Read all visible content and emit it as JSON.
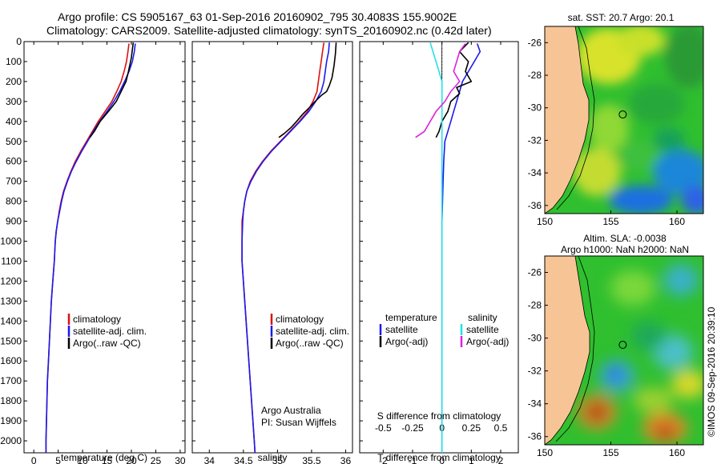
{
  "header": {
    "line1": "Argo profile: CS 5905167_63 01-Sep-2016 20160902_795 30.4083S 155.9002E",
    "line2": "Climatology: CARS2009. Satellite-adjusted climatology: synTS_20160902.nc (0.42d later)"
  },
  "watermark": "©IMOS 09-Sep-2016 20:39:10",
  "colors": {
    "climatology": "#dd1111",
    "satellite": "#1a1aee",
    "argo": "#000000",
    "sal_sat": "#22e0e8",
    "sal_argo": "#dd22dd",
    "land": "#f7c595"
  },
  "chart_data": [
    {
      "id": "temperature",
      "type": "line",
      "xlabel": "temperature (deg C)",
      "ylabel": "",
      "xlim": [
        -2,
        31
      ],
      "ylim": [
        2060,
        0
      ],
      "xticks": [
        0,
        5,
        10,
        15,
        20,
        25,
        30
      ],
      "yticks": [
        0,
        100,
        200,
        300,
        400,
        500,
        600,
        700,
        800,
        900,
        1000,
        1100,
        1200,
        1300,
        1400,
        1500,
        1600,
        1700,
        1800,
        1900,
        2000
      ],
      "legend": [
        "climatology",
        "satellite-adj. clim.",
        "Argo(..raw -QC)"
      ],
      "series": [
        {
          "name": "climatology",
          "color": "#dd1111",
          "points": [
            [
              19.5,
              10
            ],
            [
              19.3,
              50
            ],
            [
              19.0,
              100
            ],
            [
              18.5,
              150
            ],
            [
              17.9,
              200
            ],
            [
              17.0,
              250
            ],
            [
              16.0,
              300
            ],
            [
              14.6,
              350
            ],
            [
              13.2,
              400
            ],
            [
              12.0,
              450
            ],
            [
              10.8,
              500
            ],
            [
              9.6,
              550
            ],
            [
              8.5,
              600
            ],
            [
              7.6,
              650
            ],
            [
              6.8,
              700
            ],
            [
              6.1,
              750
            ],
            [
              5.6,
              800
            ],
            [
              5.2,
              850
            ],
            [
              4.9,
              900
            ],
            [
              4.6,
              950
            ],
            [
              4.4,
              1000
            ],
            [
              4.2,
              1100
            ],
            [
              3.9,
              1200
            ],
            [
              3.6,
              1300
            ],
            [
              3.4,
              1400
            ],
            [
              3.2,
              1500
            ],
            [
              3.0,
              1600
            ],
            [
              2.8,
              1700
            ],
            [
              2.7,
              1800
            ],
            [
              2.6,
              1900
            ],
            [
              2.5,
              2000
            ],
            [
              2.5,
              2060
            ]
          ]
        },
        {
          "name": "satellite-adj. clim.",
          "color": "#1a1aee",
          "points": [
            [
              20.8,
              10
            ],
            [
              20.6,
              50
            ],
            [
              20.2,
              100
            ],
            [
              19.5,
              150
            ],
            [
              18.6,
              200
            ],
            [
              17.6,
              250
            ],
            [
              16.4,
              300
            ],
            [
              15.0,
              350
            ],
            [
              13.5,
              400
            ],
            [
              12.2,
              450
            ],
            [
              11.0,
              500
            ],
            [
              9.8,
              550
            ],
            [
              8.7,
              600
            ],
            [
              7.7,
              650
            ],
            [
              6.9,
              700
            ],
            [
              6.2,
              750
            ],
            [
              5.7,
              800
            ],
            [
              5.3,
              850
            ],
            [
              4.9,
              900
            ],
            [
              4.6,
              950
            ],
            [
              4.4,
              1000
            ],
            [
              4.2,
              1100
            ],
            [
              3.9,
              1200
            ],
            [
              3.6,
              1300
            ],
            [
              3.4,
              1400
            ],
            [
              3.2,
              1500
            ],
            [
              3.0,
              1600
            ],
            [
              2.8,
              1700
            ],
            [
              2.7,
              1800
            ],
            [
              2.6,
              1900
            ],
            [
              2.5,
              2000
            ],
            [
              2.5,
              2060
            ]
          ]
        },
        {
          "name": "Argo(..raw -QC)",
          "color": "#000000",
          "points": [
            [
              20.4,
              5
            ],
            [
              20.2,
              40
            ],
            [
              20.0,
              80
            ],
            [
              19.4,
              150
            ],
            [
              18.9,
              200
            ],
            [
              17.9,
              250
            ],
            [
              16.9,
              300
            ],
            [
              15.3,
              350
            ],
            [
              13.6,
              400
            ],
            [
              12.4,
              450
            ],
            [
              11.5,
              480
            ]
          ]
        }
      ]
    },
    {
      "id": "salinity",
      "type": "line",
      "xlabel": "salinity",
      "ylabel": "",
      "xlim": [
        33.75,
        36.1
      ],
      "ylim": [
        2060,
        0
      ],
      "xticks": [
        34,
        34.5,
        35,
        35.5,
        36
      ],
      "legend": [
        "climatology",
        "satellite-adj. clim.",
        "Argo(..raw -QC)"
      ],
      "annotation": [
        "Argo Australia",
        "PI: Susan Wijffels"
      ],
      "series": [
        {
          "name": "climatology",
          "color": "#dd1111",
          "points": [
            [
              35.68,
              5
            ],
            [
              35.66,
              50
            ],
            [
              35.64,
              100
            ],
            [
              35.62,
              150
            ],
            [
              35.6,
              200
            ],
            [
              35.58,
              250
            ],
            [
              35.52,
              300
            ],
            [
              35.44,
              350
            ],
            [
              35.32,
              400
            ],
            [
              35.18,
              450
            ],
            [
              35.04,
              500
            ],
            [
              34.9,
              550
            ],
            [
              34.78,
              600
            ],
            [
              34.68,
              650
            ],
            [
              34.6,
              700
            ],
            [
              34.55,
              750
            ],
            [
              34.52,
              800
            ],
            [
              34.5,
              850
            ],
            [
              34.48,
              900
            ],
            [
              34.48,
              1000
            ],
            [
              34.48,
              1100
            ],
            [
              34.5,
              1200
            ],
            [
              34.52,
              1300
            ],
            [
              34.54,
              1400
            ],
            [
              34.56,
              1500
            ],
            [
              34.58,
              1600
            ],
            [
              34.6,
              1700
            ],
            [
              34.62,
              1800
            ],
            [
              34.64,
              1900
            ],
            [
              34.66,
              2000
            ],
            [
              34.67,
              2060
            ]
          ]
        },
        {
          "name": "satellite-adj. clim.",
          "color": "#1a1aee",
          "points": [
            [
              35.76,
              5
            ],
            [
              35.75,
              50
            ],
            [
              35.72,
              100
            ],
            [
              35.7,
              150
            ],
            [
              35.68,
              200
            ],
            [
              35.64,
              250
            ],
            [
              35.56,
              300
            ],
            [
              35.46,
              350
            ],
            [
              35.33,
              400
            ],
            [
              35.19,
              450
            ],
            [
              35.05,
              500
            ],
            [
              34.91,
              550
            ],
            [
              34.79,
              600
            ],
            [
              34.69,
              650
            ],
            [
              34.61,
              700
            ],
            [
              34.55,
              750
            ],
            [
              34.52,
              800
            ],
            [
              34.5,
              850
            ],
            [
              34.49,
              900
            ],
            [
              34.48,
              1000
            ],
            [
              34.48,
              1100
            ],
            [
              34.5,
              1200
            ],
            [
              34.52,
              1300
            ],
            [
              34.54,
              1400
            ],
            [
              34.56,
              1500
            ],
            [
              34.58,
              1600
            ],
            [
              34.6,
              1700
            ],
            [
              34.62,
              1800
            ],
            [
              34.64,
              1900
            ],
            [
              34.66,
              2000
            ],
            [
              34.67,
              2060
            ]
          ]
        },
        {
          "name": "Argo(..raw -QC)",
          "color": "#000000",
          "points": [
            [
              35.86,
              5
            ],
            [
              35.85,
              60
            ],
            [
              35.83,
              120
            ],
            [
              35.8,
              180
            ],
            [
              35.76,
              220
            ],
            [
              35.72,
              250
            ],
            [
              35.64,
              270
            ],
            [
              35.55,
              300
            ],
            [
              35.47,
              330
            ],
            [
              35.38,
              360
            ],
            [
              35.28,
              400
            ],
            [
              35.2,
              430
            ],
            [
              35.1,
              460
            ],
            [
              35.02,
              480
            ]
          ]
        }
      ]
    },
    {
      "id": "difference",
      "type": "line",
      "xlabel": "T difference from climatology",
      "xlabel2": "S difference from climatology",
      "xlim": [
        -2.8,
        2.6
      ],
      "ylim": [
        2060,
        0
      ],
      "xticks": [
        -2,
        -1,
        0,
        1,
        2
      ],
      "xticks_top": [
        "-0.5",
        "-0.25",
        "0",
        "0.25",
        "0.5"
      ],
      "legend_groups": [
        "temperature",
        "salinity"
      ],
      "legend": [
        "satellite",
        "Argo(-adj)",
        "satellite",
        "Argo(-adj)"
      ],
      "series": [
        {
          "name": "temperature satellite",
          "color": "#1a1aee",
          "points": [
            [
              1.2,
              10
            ],
            [
              1.3,
              50
            ],
            [
              1.1,
              100
            ],
            [
              0.9,
              150
            ],
            [
              0.7,
              200
            ],
            [
              0.6,
              250
            ],
            [
              0.5,
              300
            ],
            [
              0.4,
              350
            ],
            [
              0.3,
              400
            ],
            [
              0.2,
              450
            ],
            [
              0.1,
              500
            ],
            [
              0.08,
              550
            ],
            [
              0.06,
              600
            ],
            [
              0.04,
              700
            ],
            [
              0.02,
              800
            ],
            [
              0.0,
              900
            ],
            [
              0.0,
              2060
            ]
          ]
        },
        {
          "name": "temperature Argo(-adj)",
          "color": "#000000",
          "points": [
            [
              0.9,
              5
            ],
            [
              0.6,
              50
            ],
            [
              0.9,
              100
            ],
            [
              0.8,
              150
            ],
            [
              1.0,
              200
            ],
            [
              0.5,
              230
            ],
            [
              0.6,
              260
            ],
            [
              0.3,
              300
            ],
            [
              0.2,
              350
            ],
            [
              0.0,
              400
            ],
            [
              -0.1,
              450
            ],
            [
              -0.2,
              480
            ]
          ]
        },
        {
          "name": "salinity satellite",
          "color": "#22e0e8",
          "points": [
            [
              -0.4,
              5
            ],
            [
              -0.2,
              100
            ],
            [
              0.0,
              200
            ],
            [
              0.0,
              2060
            ]
          ]
        },
        {
          "name": "salinity Argo(-adj)",
          "color": "#dd22dd",
          "points": [
            [
              0.8,
              10
            ],
            [
              0.6,
              50
            ],
            [
              0.5,
              100
            ],
            [
              0.4,
              150
            ],
            [
              0.6,
              200
            ],
            [
              0.3,
              250
            ],
            [
              0.1,
              300
            ],
            [
              -0.2,
              350
            ],
            [
              -0.4,
              400
            ],
            [
              -0.6,
              450
            ],
            [
              -0.9,
              480
            ]
          ]
        }
      ]
    },
    {
      "id": "sst_map",
      "type": "heatmap",
      "title": "sat. SST: 20.7 Argo: 20.1",
      "xlim": [
        150,
        162
      ],
      "ylim": [
        -36.5,
        -25
      ],
      "xticks": [
        150,
        155,
        160
      ],
      "yticks": [
        -26,
        -28,
        -30,
        -32,
        -34,
        -36
      ],
      "argo_position": [
        155.9,
        -30.41
      ]
    },
    {
      "id": "sla_map",
      "type": "heatmap",
      "title": "Altim. SLA: -0.0038",
      "subtitle": "Argo h1000: NaN h2000: NaN",
      "xlim": [
        150,
        162
      ],
      "ylim": [
        -36.5,
        -25
      ],
      "xticks": [
        150,
        155,
        160
      ],
      "yticks": [
        -26,
        -28,
        -30,
        -32,
        -34,
        -36
      ],
      "argo_position": [
        155.9,
        -30.41
      ]
    }
  ]
}
